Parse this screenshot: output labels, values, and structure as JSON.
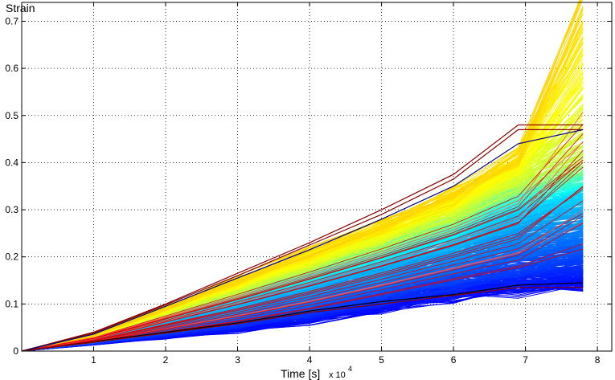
{
  "chart_data": {
    "type": "line",
    "title": "",
    "ylabel": "Strain",
    "xlabel": "Time [s]",
    "x_exponent_label": "x 10",
    "x_exponent_power": "4",
    "xlim": [
      0,
      8.2
    ],
    "ylim": [
      0,
      0.74
    ],
    "grid": true,
    "x_ticks": [
      1,
      2,
      3,
      4,
      5,
      6,
      7,
      8
    ],
    "y_ticks": [
      0,
      0.1,
      0.2,
      0.3,
      0.4,
      0.5,
      0.6,
      0.7
    ],
    "x_tick_labels": [
      "1",
      "2",
      "3",
      "4",
      "5",
      "6",
      "7",
      "8"
    ],
    "y_tick_labels": [
      "0",
      "0.1",
      "0.2",
      "0.3",
      "0.4",
      "0.5",
      "0.6",
      "0.7"
    ],
    "x": [
      0,
      1,
      2,
      3,
      4,
      5,
      6,
      6.9,
      7.8
    ],
    "series_count": 600,
    "colormap": [
      "#00008f",
      "#0000ff",
      "#0080ff",
      "#00ffff",
      "#80ff80",
      "#ffff00",
      "#ff8000",
      "#ff0000",
      "#800000"
    ],
    "envelope": {
      "upper": [
        0,
        0.035,
        0.095,
        0.155,
        0.215,
        0.275,
        0.34,
        0.42,
        0.73
      ],
      "lower": [
        0,
        0.015,
        0.03,
        0.045,
        0.065,
        0.09,
        0.115,
        0.13,
        0.145
      ]
    },
    "highlight_series": [
      {
        "color": "#8b0000",
        "values": [
          0,
          0.04,
          0.1,
          0.165,
          0.23,
          0.3,
          0.375,
          0.48,
          0.48
        ]
      },
      {
        "color": "#8b0000",
        "values": [
          0,
          0.038,
          0.098,
          0.16,
          0.225,
          0.29,
          0.365,
          0.47,
          0.47
        ]
      },
      {
        "color": "#000080",
        "values": [
          0,
          0.036,
          0.095,
          0.155,
          0.215,
          0.28,
          0.35,
          0.44,
          0.47
        ]
      },
      {
        "color": "#000000",
        "values": [
          0,
          0.02,
          0.04,
          0.06,
          0.085,
          0.105,
          0.12,
          0.14,
          0.145
        ]
      },
      {
        "color": "#8b0000",
        "values": [
          0,
          0.019,
          0.038,
          0.058,
          0.082,
          0.1,
          0.118,
          0.135,
          0.135
        ]
      }
    ]
  }
}
